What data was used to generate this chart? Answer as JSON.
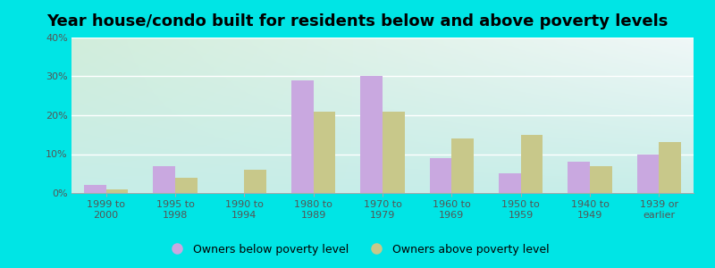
{
  "title": "Year house/condo built for residents below and above poverty levels",
  "categories": [
    "1999 to\n2000",
    "1995 to\n1998",
    "1990 to\n1994",
    "1980 to\n1989",
    "1970 to\n1979",
    "1960 to\n1969",
    "1950 to\n1959",
    "1940 to\n1949",
    "1939 or\nearlier"
  ],
  "below_poverty": [
    2,
    7,
    0,
    29,
    30,
    9,
    5,
    8,
    10
  ],
  "above_poverty": [
    1,
    4,
    6,
    21,
    21,
    14,
    15,
    7,
    13
  ],
  "below_color": "#c9a8e0",
  "above_color": "#c8c88a",
  "background_top": "#d0ede0",
  "background_bottom": "#c8eee8",
  "outer_background": "#00e5e5",
  "ylim": [
    0,
    40
  ],
  "yticks": [
    0,
    10,
    20,
    30,
    40
  ],
  "legend_below": "Owners below poverty level",
  "legend_above": "Owners above poverty level",
  "bar_width": 0.32,
  "title_fontsize": 13,
  "tick_fontsize": 8,
  "legend_fontsize": 9
}
